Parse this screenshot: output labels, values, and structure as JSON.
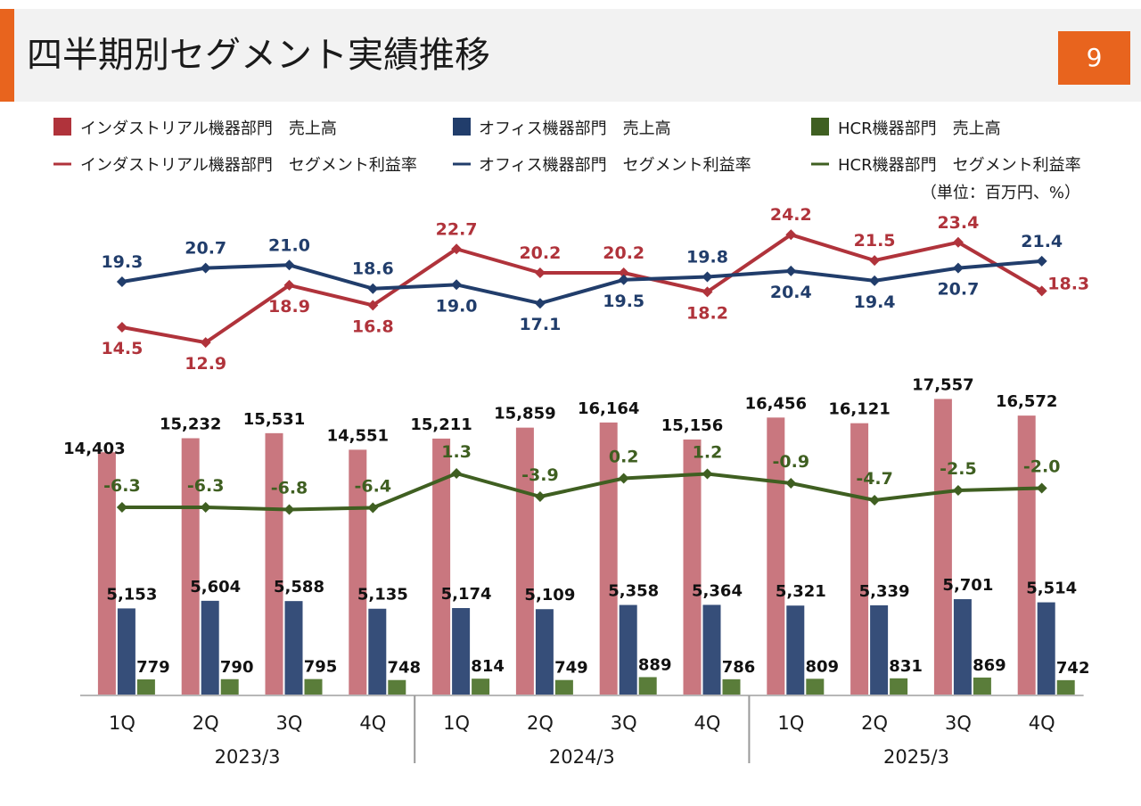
{
  "slide": {
    "title": "四半期別セグメント実績推移",
    "page": "9"
  },
  "colors": {
    "industrial_bar": "#c9777f",
    "office_bar": "#364e79",
    "hcr_bar": "#5a7d3a",
    "industrial_line": "#b0333b",
    "office_line": "#213d6b",
    "hcr_line": "#3f5f21",
    "accent": "#e8641e"
  },
  "chart_data": {
    "type": "bar",
    "unit_note": "（単位：百万円、%）",
    "quarters": [
      "1Q",
      "2Q",
      "3Q",
      "4Q",
      "1Q",
      "2Q",
      "3Q",
      "4Q",
      "1Q",
      "2Q",
      "3Q",
      "4Q"
    ],
    "years": [
      "2023/3",
      "2024/3",
      "2025/3"
    ],
    "bar_series": [
      {
        "name": "インダストリアル機器部門　売上高",
        "values": [
          14403,
          15232,
          15531,
          14551,
          15211,
          15859,
          16164,
          15156,
          16456,
          16121,
          17557,
          16572
        ],
        "labels": [
          "14,403",
          "15,232",
          "15,531",
          "14,551",
          "15,211",
          "15,859",
          "16,164",
          "15,156",
          "16,456",
          "16,121",
          "17,557",
          "16,572"
        ]
      },
      {
        "name": "オフィス機器部門　売上高",
        "values": [
          5153,
          5604,
          5588,
          5135,
          5174,
          5109,
          5358,
          5364,
          5321,
          5339,
          5701,
          5514
        ],
        "labels": [
          "5,153",
          "5,604",
          "5,588",
          "5,135",
          "5,174",
          "5,109",
          "5,358",
          "5,364",
          "5,321",
          "5,339",
          "5,701",
          "5,514"
        ]
      },
      {
        "name": "HCR機器部門　売上高",
        "values": [
          779,
          790,
          795,
          748,
          814,
          749,
          889,
          786,
          809,
          831,
          869,
          742
        ],
        "labels": [
          "779",
          "790",
          "795",
          "748",
          "814",
          "749",
          "889",
          "786",
          "809",
          "831",
          "869",
          "742"
        ]
      }
    ],
    "line_series": [
      {
        "name": "インダストリアル機器部門　セグメント利益率",
        "values": [
          14.5,
          12.9,
          18.9,
          16.8,
          22.7,
          20.2,
          20.2,
          18.2,
          24.2,
          21.5,
          23.4,
          18.3
        ],
        "labels": [
          "14.5",
          "12.9",
          "18.9",
          "16.8",
          "22.7",
          "20.2",
          "20.2",
          "18.2",
          "24.2",
          "21.5",
          "23.4",
          "18.3"
        ]
      },
      {
        "name": "オフィス機器部門　セグメント利益率",
        "values": [
          19.3,
          20.7,
          21.0,
          18.6,
          19.0,
          17.1,
          19.5,
          19.8,
          20.4,
          19.4,
          20.7,
          21.4
        ],
        "labels": [
          "19.3",
          "20.7",
          "21.0",
          "18.6",
          "19.0",
          "17.1",
          "19.5",
          "19.8",
          "20.4",
          "19.4",
          "20.7",
          "21.4"
        ]
      },
      {
        "name": "HCR機器部門　セグメント利益率",
        "values": [
          -6.3,
          -6.3,
          -6.8,
          -6.4,
          1.3,
          -3.9,
          0.2,
          1.2,
          -0.9,
          -4.7,
          -2.5,
          -2.0
        ],
        "labels": [
          "-6.3",
          "-6.3",
          "-6.8",
          "-6.4",
          "1.3",
          "-3.9",
          "0.2",
          "1.2",
          "-0.9",
          "-4.7",
          "-2.5",
          "-2.0"
        ]
      }
    ]
  }
}
